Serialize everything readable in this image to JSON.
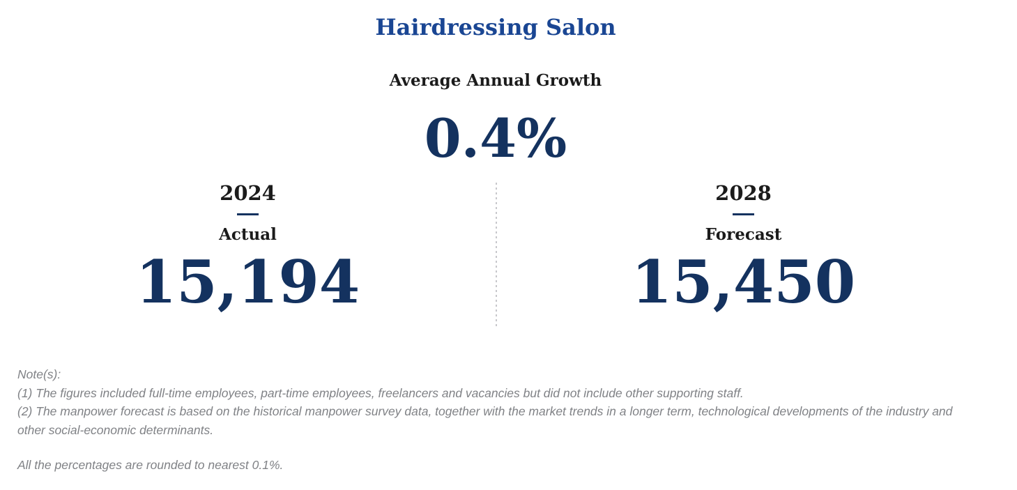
{
  "page": {
    "title": "Hairdressing Salon",
    "growth": {
      "label": "Average Annual Growth",
      "value": "0.4%"
    },
    "columns": [
      {
        "year": "2024",
        "type": "Actual",
        "value": "15,194"
      },
      {
        "year": "2028",
        "type": "Forecast",
        "value": "15,450"
      }
    ],
    "notes": {
      "heading": "Note(s):",
      "items": [
        "(1) The figures included full-time employees, part-time employees, freelancers and vacancies but did not include other supporting staff.",
        "(2) The manpower forecast is based on the historical manpower survey data, together with the market trends in a longer term, technological developments of the industry and other social-economic determinants."
      ],
      "footer": "All the percentages are rounded to nearest 0.1%."
    },
    "colors": {
      "title_blue": "#1a4693",
      "value_navy": "#14325f",
      "text_black": "#1b1b1b",
      "note_gray": "#808286",
      "divider_gray": "#c7c7cb"
    }
  },
  "chart_data": {
    "type": "table",
    "title": "Hairdressing Salon",
    "subtitle": "Average Annual Growth",
    "average_annual_growth_pct": 0.4,
    "categories": [
      "2024 Actual",
      "2028 Forecast"
    ],
    "values": [
      15194,
      15450
    ],
    "annotations": [
      "Note(s):",
      "(1) The figures included full-time employees, part-time employees, freelancers and vacancies but did not include other supporting staff.",
      "(2) The manpower forecast is based on the historical manpower survey data, together with the market trends in a longer term, technological developments of the industry and other social-economic determinants.",
      "All the percentages are rounded to nearest 0.1%."
    ]
  }
}
